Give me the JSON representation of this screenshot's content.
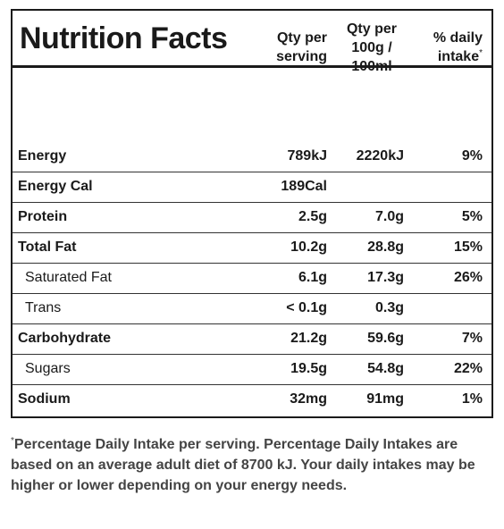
{
  "title": "Nutrition Facts",
  "columns": [
    "Qty per serving",
    "Qty per 100g / 100ml",
    "% daily intake"
  ],
  "asterisk": "*",
  "rows": [
    {
      "name": "Energy",
      "bold": true,
      "cells": [
        "789kJ",
        "2220kJ",
        "9%"
      ]
    },
    {
      "name": "Energy Cal",
      "bold": true,
      "cells": [
        "189Cal",
        null,
        null
      ]
    },
    {
      "name": "Protein",
      "bold": true,
      "cells": [
        "2.5g",
        "7.0g",
        "5%"
      ]
    },
    {
      "name": "Total Fat",
      "bold": true,
      "cells": [
        "10.2g",
        "28.8g",
        "15%"
      ]
    },
    {
      "name": "Saturated Fat",
      "bold": false,
      "cells": [
        "6.1g",
        "17.3g",
        "26%"
      ]
    },
    {
      "name": "Trans",
      "bold": false,
      "cells": [
        "< 0.1g",
        "0.3g",
        null
      ]
    },
    {
      "name": "Carbohydrate",
      "bold": true,
      "cells": [
        "21.2g",
        "59.6g",
        "7%"
      ]
    },
    {
      "name": "Sugars",
      "bold": false,
      "cells": [
        "19.5g",
        "54.8g",
        "22%"
      ]
    },
    {
      "name": "Sodium",
      "bold": true,
      "cells": [
        "32mg",
        "91mg",
        "1%"
      ]
    }
  ],
  "footnote": "Percentage Daily Intake per serving. Percentage Daily Intakes are based on an average adult diet of 8700 kJ. Your daily intakes may be higher or lower depending on your energy needs."
}
